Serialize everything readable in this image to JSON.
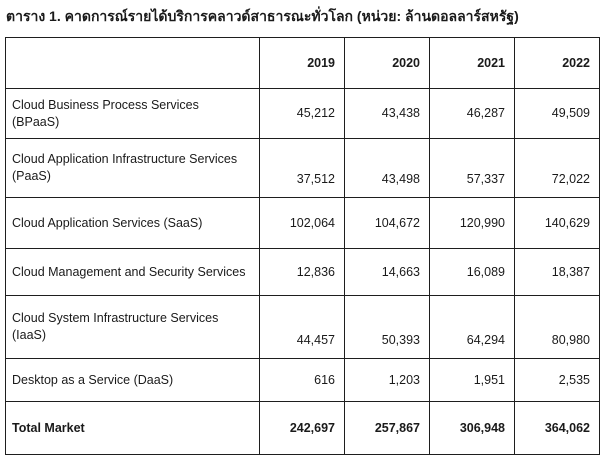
{
  "caption": "ตาราง 1. คาดการณ์รายได้บริการคลาวด์สาธารณะทั่วโลก (หน่วย: ล้านดอลลาร์สหรัฐ)",
  "table": {
    "headers": [
      "",
      "2019",
      "2020",
      "2021",
      "2022"
    ],
    "rows": [
      {
        "label": "Cloud Business Process Services (BPaaS)",
        "values": [
          "45,212",
          "43,438",
          "46,287",
          "49,509"
        ]
      },
      {
        "label": "Cloud Application Infrastructure Services (PaaS)",
        "values": [
          "37,512",
          "43,498",
          "57,337",
          "72,022"
        ]
      },
      {
        "label": "Cloud Application Services (SaaS)",
        "values": [
          "102,064",
          "104,672",
          "120,990",
          "140,629"
        ]
      },
      {
        "label": "Cloud Management and Security Services",
        "values": [
          "12,836",
          "14,663",
          "16,089",
          "18,387"
        ]
      },
      {
        "label": "Cloud System Infrastructure Services (IaaS)",
        "values": [
          "44,457",
          "50,393",
          "64,294",
          "80,980"
        ]
      },
      {
        "label": "Desktop as a Service (DaaS)",
        "values": [
          "616",
          "1,203",
          "1,951",
          "2,535"
        ]
      }
    ],
    "total": {
      "label": "Total Market",
      "values": [
        "242,697",
        "257,867",
        "306,948",
        "364,062"
      ]
    }
  }
}
